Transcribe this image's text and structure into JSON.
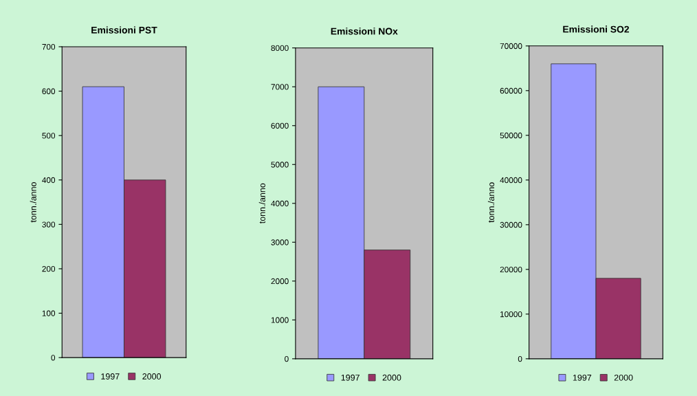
{
  "chart_data": [
    {
      "type": "bar",
      "title": "Emissioni PST",
      "ylabel": "tonn./anno",
      "categories": [
        null
      ],
      "series": [
        {
          "name": "1997",
          "color": "#9999ff",
          "values": [
            610
          ]
        },
        {
          "name": "2000",
          "color": "#993366",
          "values": [
            400
          ]
        }
      ],
      "ylim": [
        0,
        700
      ],
      "yticks": [
        0,
        100,
        200,
        300,
        400,
        500,
        600,
        700
      ],
      "grid": false,
      "legend": "bottom"
    },
    {
      "type": "bar",
      "title": "Emissioni NOx",
      "ylabel": "tonn./anno",
      "categories": [
        null
      ],
      "series": [
        {
          "name": "1997",
          "color": "#9999ff",
          "values": [
            7000
          ]
        },
        {
          "name": "2000",
          "color": "#993366",
          "values": [
            2800
          ]
        }
      ],
      "ylim": [
        0,
        8000
      ],
      "yticks": [
        0,
        1000,
        2000,
        3000,
        4000,
        5000,
        6000,
        7000,
        8000
      ],
      "grid": false,
      "legend": "bottom"
    },
    {
      "type": "bar",
      "title": "Emissioni SO2",
      "ylabel": "tonn./anno",
      "categories": [
        null
      ],
      "series": [
        {
          "name": "1997",
          "color": "#9999ff",
          "values": [
            66000
          ]
        },
        {
          "name": "2000",
          "color": "#993366",
          "values": [
            18000
          ]
        }
      ],
      "ylim": [
        0,
        70000
      ],
      "yticks": [
        0,
        10000,
        20000,
        30000,
        40000,
        50000,
        60000,
        70000
      ],
      "grid": false,
      "legend": "bottom"
    }
  ]
}
